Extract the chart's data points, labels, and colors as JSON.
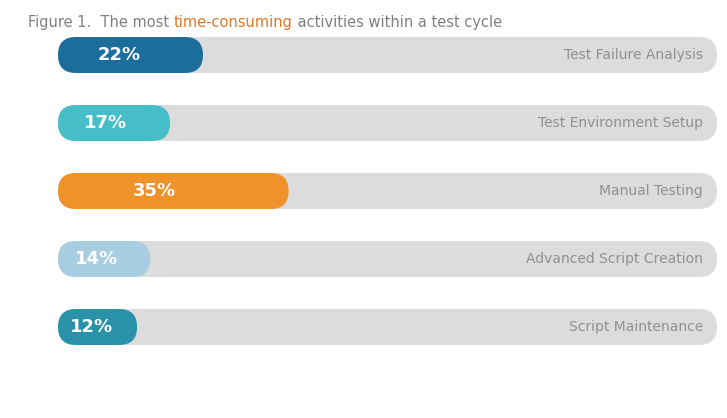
{
  "title_parts": [
    {
      "text": "Figure 1.  The most ",
      "color": "#808080",
      "style": "normal"
    },
    {
      "text": "time-consuming",
      "color": "#e07828",
      "style": "normal"
    },
    {
      "text": " activities within a test cycle",
      "color": "#808080",
      "style": "normal"
    }
  ],
  "bars": [
    {
      "label": "Test Failure Analysis",
      "value": 22,
      "color": "#1b6d9c"
    },
    {
      "label": "Test Environment Setup",
      "value": 17,
      "color": "#45bec8"
    },
    {
      "label": "Manual Testing",
      "value": 35,
      "color": "#f0922a"
    },
    {
      "label": "Advanced Script Creation",
      "value": 14,
      "color": "#a8cce0"
    },
    {
      "label": "Script Maintenance",
      "value": 12,
      "color": "#2a92a8"
    }
  ],
  "bar_bg_color": "#dcdcdc",
  "bar_text_color": "#ffffff",
  "label_color": "#909090",
  "background_color": "#ffffff",
  "fig_width": 7.27,
  "fig_height": 4.18,
  "dpi": 100
}
